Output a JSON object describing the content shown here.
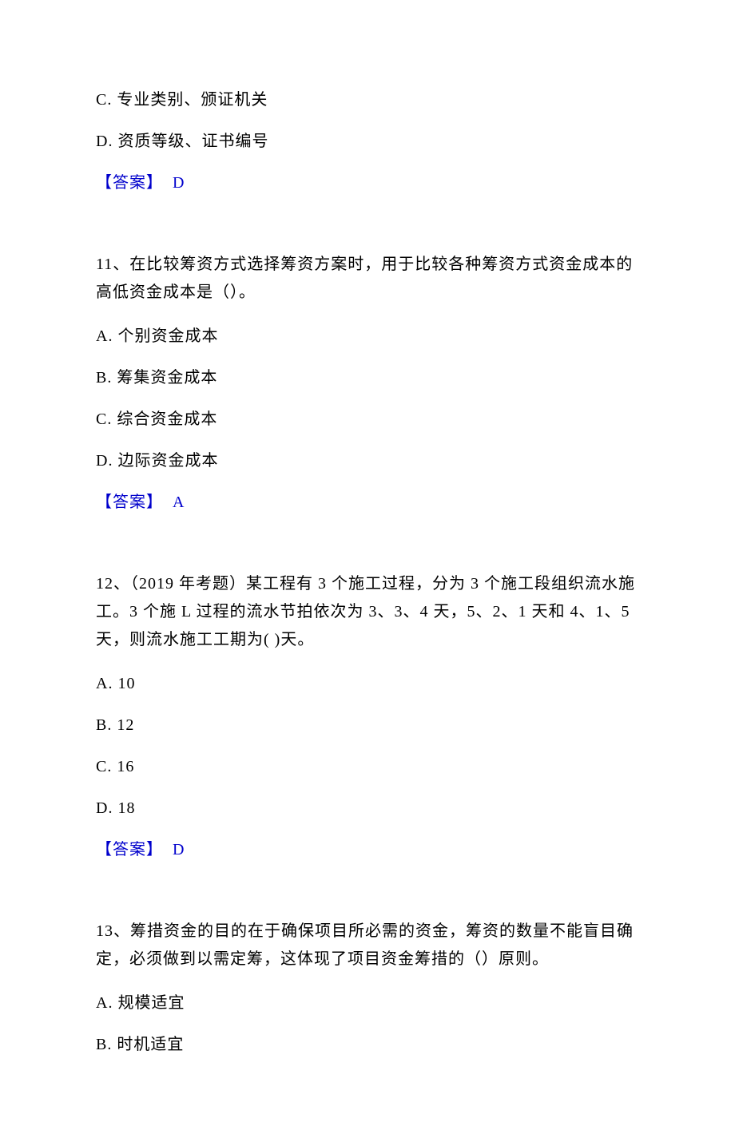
{
  "text_color": "#000000",
  "answer_color": "#0000cc",
  "background_color": "#ffffff",
  "font_family": "SimSun",
  "base_fontsize": 20,
  "q10_tail": {
    "options": [
      "C. 专业类别、颁证机关",
      "D. 资质等级、证书编号"
    ],
    "answer_label": "【答案】",
    "answer_letter": "D"
  },
  "q11": {
    "stem": "11、在比较筹资方式选择筹资方案时，用于比较各种筹资方式资金成本的高低资金成本是（）。",
    "options": [
      "A. 个别资金成本",
      "B. 筹集资金成本",
      "C. 综合资金成本",
      "D. 边际资金成本"
    ],
    "answer_label": "【答案】",
    "answer_letter": "A"
  },
  "q12": {
    "stem": "12、（2019 年考题）某工程有 3 个施工过程，分为 3 个施工段组织流水施工。3 个施 L 过程的流水节拍依次为 3、3、4 天，5、2、1 天和 4、1、5 天，则流水施工工期为( )天。",
    "options": [
      "A. 10",
      "B. 12",
      "C. 16",
      "D. 18"
    ],
    "answer_label": "【答案】",
    "answer_letter": "D"
  },
  "q13": {
    "stem": "13、筹措资金的目的在于确保项目所必需的资金，筹资的数量不能盲目确定，必须做到以需定筹，这体现了项目资金筹措的（）原则。",
    "options": [
      "A. 规模适宜",
      "B. 时机适宜"
    ]
  }
}
